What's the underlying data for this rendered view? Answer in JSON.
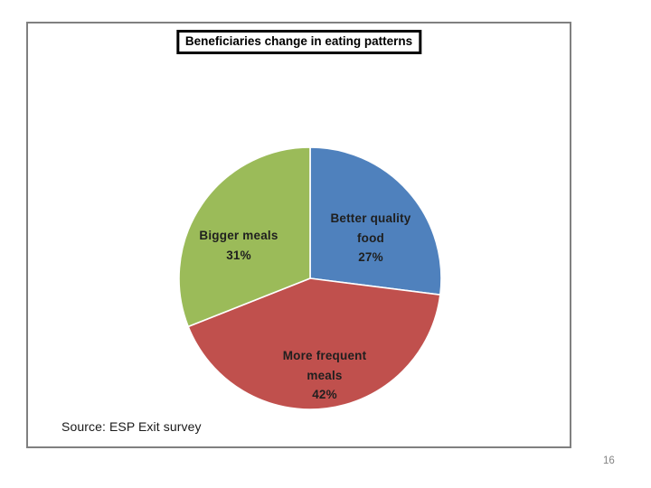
{
  "slide": {
    "title": "Beneficiaries change in eating patterns",
    "source": "Source: ESP Exit survey",
    "page_number": "16"
  },
  "chart_data": {
    "type": "pie",
    "title": "Beneficiaries change in eating patterns",
    "start_angle_deg": 0,
    "direction": "clockwise",
    "legend": "none",
    "total": 100,
    "slices": [
      {
        "label": "Better quality food",
        "pct": "27%",
        "value": 27,
        "color": "#4F81BD"
      },
      {
        "label": "More frequent meals",
        "pct": "42%",
        "value": 42,
        "color": "#C0504D"
      },
      {
        "label": "Bigger meals",
        "pct": "31%",
        "value": 31,
        "color": "#9BBB59"
      }
    ],
    "separator_color": "#FFFFFF",
    "label_color": "#1F1F1F"
  },
  "colors": {
    "background": "#FFFFFF",
    "slide_border": "#808080",
    "title_border": "#000000",
    "source_color": "#1A1A1A",
    "page_number_color": "#848484"
  }
}
